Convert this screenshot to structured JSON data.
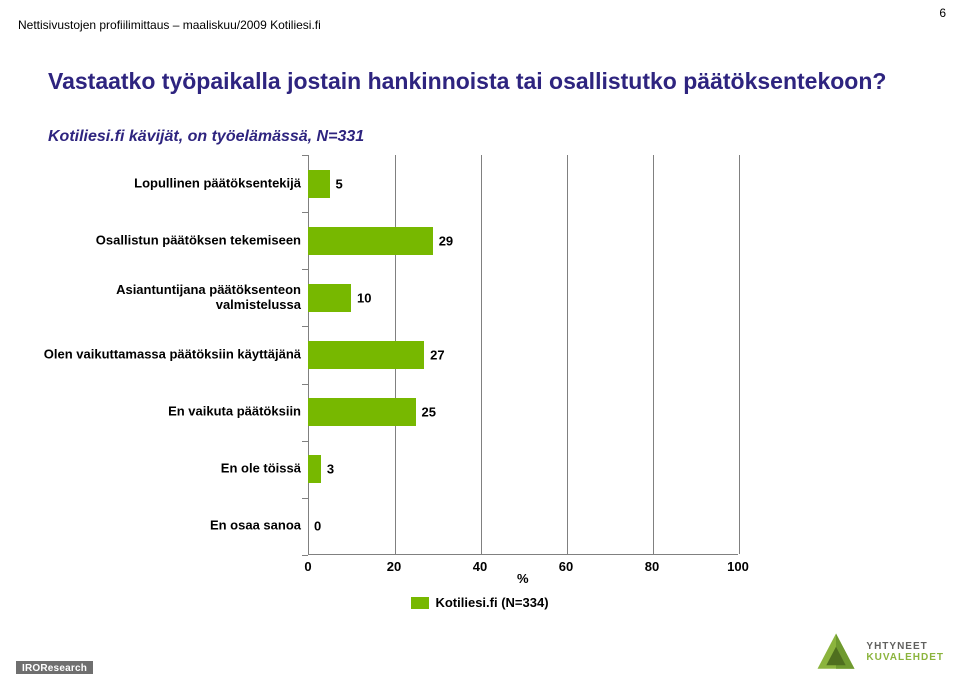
{
  "page_number": "6",
  "header_line": "Nettisivustojen profiilimittaus – maaliskuu/2009  Kotiliesi.fi",
  "title": "Vastaatko työpaikalla jostain hankinnoista tai osallistutko päätöksentekoon?",
  "subtitle": "Kotiliesi.fi kävijät, on työelämässä, N=331",
  "chart": {
    "type": "bar-horizontal",
    "categories": [
      "Lopullinen päätöksentekijä",
      "Osallistun päätöksen tekemiseen",
      "Asiantuntijana päätöksenteon valmistelussa",
      "Olen vaikuttamassa päätöksiin käyttäjänä",
      "En vaikuta päätöksiin",
      "En ole töissä",
      "En osaa sanoa"
    ],
    "values": [
      5,
      29,
      10,
      27,
      25,
      3,
      0
    ],
    "bar_color": "#77b800",
    "xlim": [
      0,
      100
    ],
    "xtick_step": 20,
    "x_ticks": [
      0,
      20,
      40,
      60,
      80,
      100
    ],
    "x_axis_label": "%",
    "grid_color": "#808080",
    "background_color": "#ffffff",
    "label_fontsize": 13,
    "label_fontweight": "bold",
    "label_color": "#000000",
    "title_color": "#2e247f"
  },
  "legend": {
    "label": "Kotiliesi.fi (N=334)",
    "swatch_color": "#77b800"
  },
  "footer": {
    "left_brand": "IROResearch",
    "right_brand_line1": "YHTYNEET",
    "right_brand_line2": "KUVALEHDET"
  }
}
